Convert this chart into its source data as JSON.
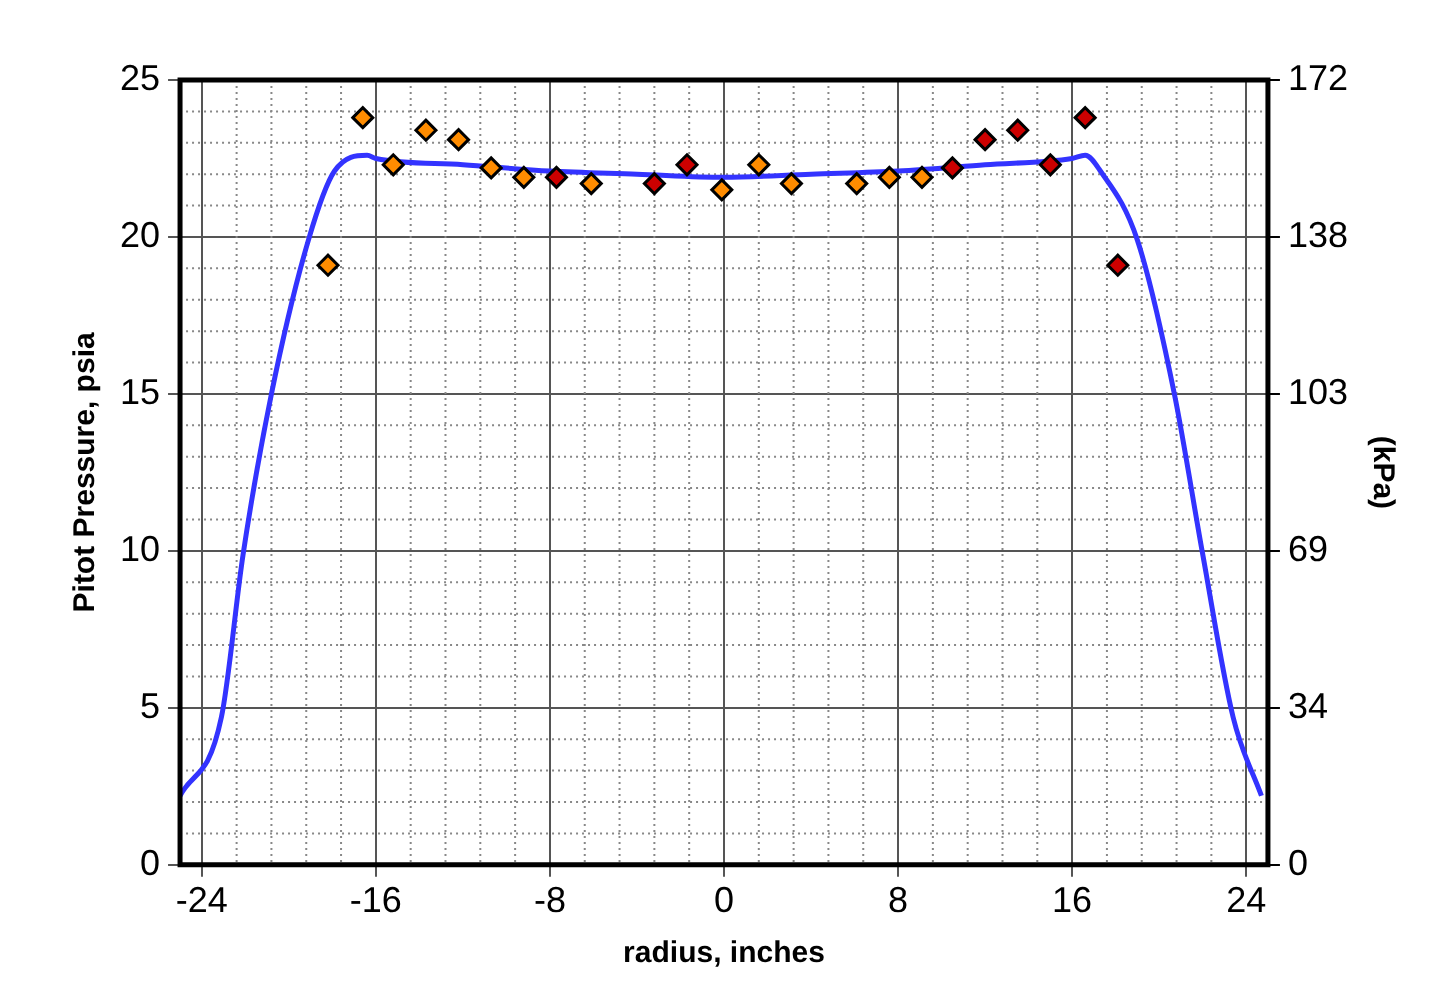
{
  "chart_data": {
    "type": "scatter",
    "xlabel": "radius, inches",
    "ylabel": "Pitot Pressure, psia",
    "y2label": "(kPa)",
    "xlim": [
      -25,
      25
    ],
    "xticks": [
      -24,
      -16,
      -8,
      0,
      8,
      16,
      24
    ],
    "ylim": [
      0,
      25
    ],
    "yticks": [
      0,
      5,
      10,
      15,
      20,
      25
    ],
    "y2lim": [
      0,
      172.37
    ],
    "y2ticks": [
      0,
      {
        "value": 34.47,
        "label": "34"
      },
      {
        "value": 68.95,
        "label": "69"
      },
      {
        "value": 103.42,
        "label": "103"
      },
      {
        "value": 137.9,
        "label": "138"
      },
      {
        "value": 172.37,
        "label": "172"
      }
    ],
    "grid": true,
    "marker": "diamond",
    "series": [
      {
        "color": "#ff8c00",
        "x": [
          -18.2,
          -16.6,
          -15.2,
          -13.7,
          -12.2,
          -10.7,
          -9.2,
          -6.1,
          -0.1,
          1.6,
          3.1,
          6.1,
          7.6,
          9.1
        ],
        "values": [
          19.1,
          23.8,
          22.3,
          23.4,
          23.1,
          22.2,
          21.9,
          21.7,
          21.5,
          22.3,
          21.7,
          21.7,
          21.9,
          21.9
        ]
      },
      {
        "color": "#cc0000",
        "x": [
          -7.7,
          -3.2,
          -1.7,
          10.5,
          12.0,
          13.5,
          15.0,
          16.6,
          18.1
        ],
        "values": [
          21.9,
          21.7,
          22.3,
          22.2,
          23.1,
          23.4,
          22.3,
          23.8,
          19.1
        ]
      },
      {
        "type": "line",
        "color": "#3333ff",
        "marker": "none",
        "x": [
          -25,
          -23.1,
          -22.1,
          -20.8,
          -19.1,
          -17.9,
          -16.4,
          -16,
          -12,
          -8,
          -4,
          0,
          4,
          8,
          12,
          16,
          16.6,
          17.3,
          19.0,
          20.7,
          22.0,
          23.4,
          24.7
        ],
        "values": [
          2.2,
          4.7,
          9.9,
          15.0,
          19.9,
          22.1,
          22.6,
          22.5,
          22.3,
          22.1,
          22.0,
          21.9,
          22.0,
          22.1,
          22.3,
          22.5,
          22.6,
          22.1,
          19.9,
          15.0,
          9.9,
          4.7,
          2.2
        ]
      }
    ]
  }
}
